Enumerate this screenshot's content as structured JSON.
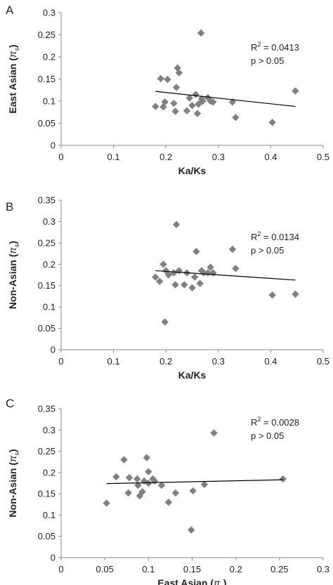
{
  "chart_data": [
    {
      "type": "scatter",
      "panel": "A",
      "xlabel": "Ka/Ks",
      "ylabel": "East Asian",
      "ylabel_symbol": "π",
      "ylabel_sub": "s",
      "xlim": [
        0,
        0.5
      ],
      "ylim": [
        0,
        0.3
      ],
      "xticks": [
        "0",
        "0.1",
        "0.2",
        "0.3",
        "0.4",
        "0.5"
      ],
      "yticks": [
        "0",
        "0.05",
        "0.1",
        "0.15",
        "0.2",
        "0.25",
        "0.3"
      ],
      "xtick_values": [
        0,
        0.1,
        0.2,
        0.3,
        0.4,
        0.5
      ],
      "ytick_values": [
        0,
        0.05,
        0.1,
        0.15,
        0.2,
        0.25,
        0.3
      ],
      "points": [
        [
          0.18,
          0.088
        ],
        [
          0.19,
          0.151
        ],
        [
          0.195,
          0.087
        ],
        [
          0.198,
          0.098
        ],
        [
          0.203,
          0.149
        ],
        [
          0.215,
          0.095
        ],
        [
          0.218,
          0.077
        ],
        [
          0.22,
          0.131
        ],
        [
          0.222,
          0.175
        ],
        [
          0.225,
          0.164
        ],
        [
          0.24,
          0.078
        ],
        [
          0.245,
          0.107
        ],
        [
          0.25,
          0.09
        ],
        [
          0.257,
          0.115
        ],
        [
          0.26,
          0.072
        ],
        [
          0.262,
          0.093
        ],
        [
          0.267,
          0.254
        ],
        [
          0.268,
          0.105
        ],
        [
          0.27,
          0.1
        ],
        [
          0.28,
          0.108
        ],
        [
          0.285,
          0.1
        ],
        [
          0.29,
          0.098
        ],
        [
          0.327,
          0.098
        ],
        [
          0.333,
          0.063
        ],
        [
          0.403,
          0.052
        ],
        [
          0.447,
          0.123
        ]
      ],
      "trendline": {
        "x": [
          0.18,
          0.447
        ],
        "y": [
          0.122,
          0.088
        ]
      },
      "r2_label": "R",
      "r2_exp": "2",
      "r2_value": " = 0.0413",
      "p_label": "p > 0.05"
    },
    {
      "type": "scatter",
      "panel": "B",
      "xlabel": "Ka/Ks",
      "ylabel": "Non-Asian",
      "ylabel_symbol": "π",
      "ylabel_sub": "s",
      "xlim": [
        0,
        0.5
      ],
      "ylim": [
        0,
        0.35
      ],
      "xticks": [
        "0",
        "0.1",
        "0.2",
        "0.3",
        "0.4",
        "0.5"
      ],
      "yticks": [
        "0",
        "0.05",
        "0.1",
        "0.15",
        "0.2",
        "0.25",
        "0.3",
        "0.35"
      ],
      "xtick_values": [
        0,
        0.1,
        0.2,
        0.3,
        0.4,
        0.5
      ],
      "ytick_values": [
        0,
        0.05,
        0.1,
        0.15,
        0.2,
        0.25,
        0.3,
        0.35
      ],
      "points": [
        [
          0.18,
          0.17
        ],
        [
          0.188,
          0.16
        ],
        [
          0.195,
          0.2
        ],
        [
          0.198,
          0.065
        ],
        [
          0.2,
          0.185
        ],
        [
          0.205,
          0.175
        ],
        [
          0.215,
          0.18
        ],
        [
          0.218,
          0.152
        ],
        [
          0.22,
          0.293
        ],
        [
          0.225,
          0.185
        ],
        [
          0.235,
          0.152
        ],
        [
          0.24,
          0.18
        ],
        [
          0.25,
          0.145
        ],
        [
          0.255,
          0.17
        ],
        [
          0.258,
          0.23
        ],
        [
          0.265,
          0.155
        ],
        [
          0.268,
          0.185
        ],
        [
          0.272,
          0.18
        ],
        [
          0.28,
          0.18
        ],
        [
          0.285,
          0.193
        ],
        [
          0.29,
          0.18
        ],
        [
          0.327,
          0.235
        ],
        [
          0.333,
          0.19
        ],
        [
          0.403,
          0.128
        ],
        [
          0.447,
          0.13
        ]
      ],
      "trendline": {
        "x": [
          0.18,
          0.447
        ],
        "y": [
          0.185,
          0.163
        ]
      },
      "r2_label": "R",
      "r2_exp": "2",
      "r2_value": " = 0.0134",
      "p_label": "p > 0.05"
    },
    {
      "type": "scatter",
      "panel": "C",
      "xlabel": "East Asian",
      "xlabel_symbol": "π",
      "xlabel_sub": "s",
      "ylabel": "Non-Asian",
      "ylabel_symbol": "π",
      "ylabel_sub": "s",
      "xlim": [
        0,
        0.3
      ],
      "ylim": [
        0,
        0.35
      ],
      "xticks": [
        "0",
        "0.05",
        "0.1",
        "0.15",
        "0.2",
        "0.25",
        "0.3"
      ],
      "yticks": [
        "0",
        "0.05",
        "0.1",
        "0.15",
        "0.2",
        "0.25",
        "0.3",
        "0.35"
      ],
      "xtick_values": [
        0,
        0.05,
        0.1,
        0.15,
        0.2,
        0.25,
        0.3
      ],
      "ytick_values": [
        0,
        0.05,
        0.1,
        0.15,
        0.2,
        0.25,
        0.3,
        0.35
      ],
      "points": [
        [
          0.052,
          0.128
        ],
        [
          0.063,
          0.19
        ],
        [
          0.072,
          0.23
        ],
        [
          0.077,
          0.152
        ],
        [
          0.078,
          0.188
        ],
        [
          0.087,
          0.185
        ],
        [
          0.088,
          0.17
        ],
        [
          0.09,
          0.145
        ],
        [
          0.093,
          0.155
        ],
        [
          0.095,
          0.18
        ],
        [
          0.098,
          0.235
        ],
        [
          0.1,
          0.202
        ],
        [
          0.1,
          0.175
        ],
        [
          0.105,
          0.185
        ],
        [
          0.107,
          0.18
        ],
        [
          0.115,
          0.17
        ],
        [
          0.123,
          0.13
        ],
        [
          0.131,
          0.152
        ],
        [
          0.149,
          0.065
        ],
        [
          0.151,
          0.157
        ],
        [
          0.164,
          0.172
        ],
        [
          0.175,
          0.293
        ],
        [
          0.254,
          0.185
        ]
      ],
      "trendline": {
        "x": [
          0.052,
          0.254
        ],
        "y": [
          0.174,
          0.183
        ]
      },
      "r2_label": "R",
      "r2_exp": "2",
      "r2_value": " = 0.0028",
      "p_label": "p > 0.05"
    }
  ],
  "colors": {
    "marker": "#808080",
    "trendline": "#000000",
    "axis": "#888888"
  }
}
